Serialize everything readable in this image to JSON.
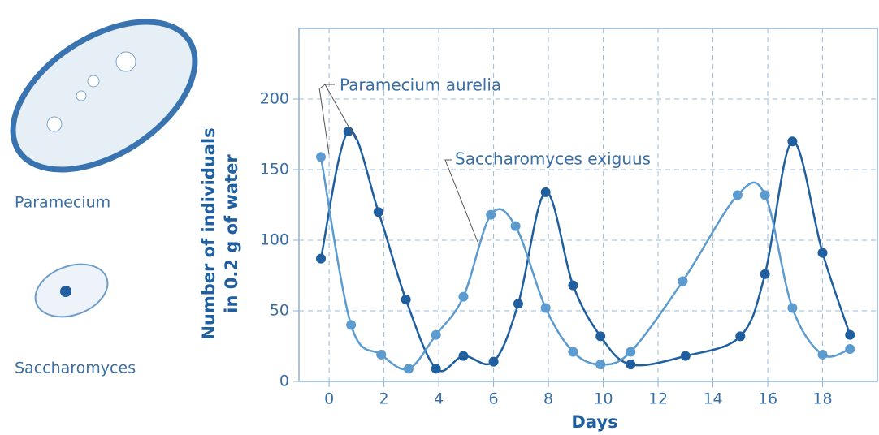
{
  "chart_data": {
    "type": "line",
    "xlabel": "Days",
    "ylabel": [
      "Number of individuals",
      "in 0.2 g of water"
    ],
    "xlim": [
      -1.1,
      20
    ],
    "ylim": [
      0,
      250
    ],
    "xticks": [
      0,
      2,
      4,
      6,
      8,
      10,
      12,
      14,
      16,
      18
    ],
    "yticks": [
      0,
      50,
      100,
      150,
      200
    ],
    "grid": true,
    "annotations": [
      "Paramecium aurelia",
      "Saccharomyces exiguus"
    ],
    "series": [
      {
        "name": "Paramecium aurelia",
        "color": "#1f5f9f",
        "x": [
          -0.3,
          0.7,
          1.8,
          2.8,
          3.9,
          4.9,
          6,
          6.9,
          7.9,
          8.9,
          9.9,
          11,
          13,
          15,
          15.9,
          16.9,
          18,
          19
        ],
        "values": [
          87,
          177,
          120,
          58,
          9,
          18,
          14,
          55,
          134,
          68,
          32,
          12,
          18,
          32,
          76,
          170,
          91,
          33
        ]
      },
      {
        "name": "Saccharomyces exiguus",
        "color": "#5b9bd0",
        "x": [
          -0.3,
          0.8,
          1.9,
          2.9,
          3.9,
          4.9,
          5.9,
          6.8,
          7.9,
          8.9,
          9.9,
          11,
          12.9,
          14.9,
          15.9,
          16.9,
          18,
          19
        ],
        "values": [
          159,
          40,
          19,
          9,
          33,
          60,
          118,
          110,
          52,
          21,
          12,
          21,
          71,
          132,
          132,
          52,
          19,
          23
        ]
      }
    ]
  },
  "illustrations": [
    "Paramecium",
    "Saccharomyces"
  ]
}
